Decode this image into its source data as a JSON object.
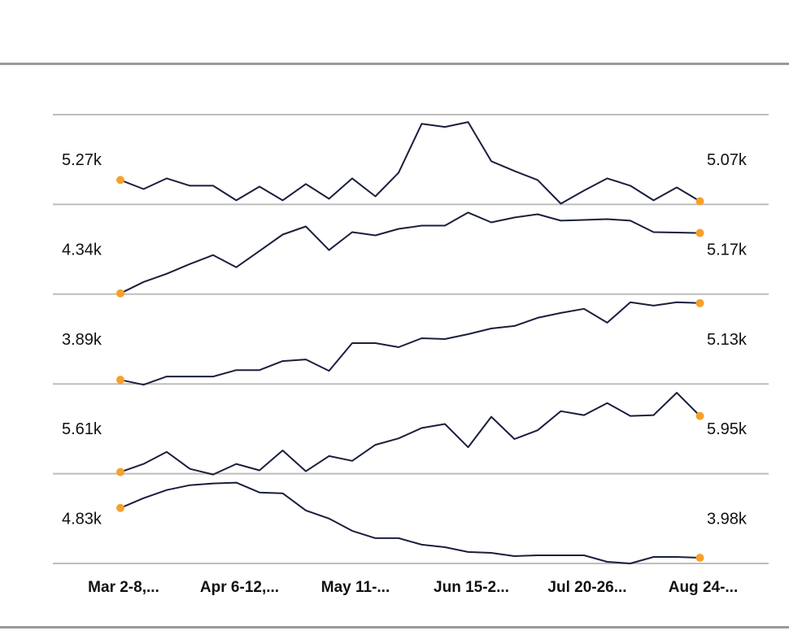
{
  "chart_data": {
    "type": "line",
    "layout": "stacked-sparklines",
    "x_labels": [
      "Mar 2-8,...",
      "Apr 6-12,...",
      "May 11-...",
      "Jun 15-2...",
      "Jul 20-26...",
      "Aug 24-..."
    ],
    "x_label_indices": [
      0,
      5,
      10,
      15,
      20,
      25
    ],
    "grid": true,
    "colors": {
      "line": "#1a1f3d",
      "endpoint": "#f7a02a",
      "grid": "#bdbdbd"
    },
    "series": [
      {
        "first_label": "5.27k",
        "last_label": "5.07k",
        "ylim": [
          5.04,
          5.886
        ],
        "values": [
          5.27,
          5.185,
          5.285,
          5.216,
          5.216,
          5.078,
          5.208,
          5.078,
          5.232,
          5.093,
          5.285,
          5.116,
          5.339,
          5.8,
          5.77,
          5.816,
          5.447,
          5.355,
          5.27,
          5.047,
          5.17,
          5.285,
          5.216,
          5.078,
          5.2,
          5.07
        ]
      },
      {
        "first_label": "4.34k",
        "last_label": "5.17k",
        "ylim": [
          4.329,
          5.563
        ],
        "values": [
          4.34,
          4.497,
          4.609,
          4.744,
          4.867,
          4.699,
          4.923,
          5.148,
          5.26,
          4.935,
          5.182,
          5.137,
          5.226,
          5.271,
          5.271,
          5.451,
          5.316,
          5.383,
          5.428,
          5.339,
          5.35,
          5.361,
          5.339,
          5.182,
          5.176,
          5.17
        ]
      },
      {
        "first_label": "3.89k",
        "last_label": "5.13k",
        "ylim": [
          3.824,
          5.275
        ],
        "values": [
          3.89,
          3.811,
          3.943,
          3.943,
          3.943,
          4.048,
          4.048,
          4.193,
          4.22,
          4.035,
          4.484,
          4.484,
          4.418,
          4.563,
          4.55,
          4.629,
          4.721,
          4.761,
          4.893,
          4.972,
          5.038,
          4.814,
          5.143,
          5.09,
          5.143,
          5.13
        ]
      },
      {
        "first_label": "5.61k",
        "last_label": "5.95k",
        "ylim": [
          5.6,
          6.144
        ],
        "values": [
          5.61,
          5.659,
          5.732,
          5.629,
          5.595,
          5.659,
          5.62,
          5.741,
          5.615,
          5.707,
          5.678,
          5.775,
          5.814,
          5.877,
          5.901,
          5.76,
          5.945,
          5.81,
          5.863,
          5.979,
          5.955,
          6.028,
          5.95,
          5.955,
          6.091,
          5.95
        ]
      },
      {
        "first_label": "4.83k",
        "last_label": "3.98k",
        "ylim": [
          3.883,
          5.415
        ],
        "values": [
          4.83,
          4.997,
          5.136,
          5.22,
          5.248,
          5.262,
          5.095,
          5.081,
          4.788,
          4.649,
          4.44,
          4.315,
          4.315,
          4.203,
          4.161,
          4.078,
          4.064,
          4.008,
          4.022,
          4.022,
          4.022,
          3.911,
          3.883,
          3.994,
          3.994,
          3.98
        ]
      }
    ]
  }
}
